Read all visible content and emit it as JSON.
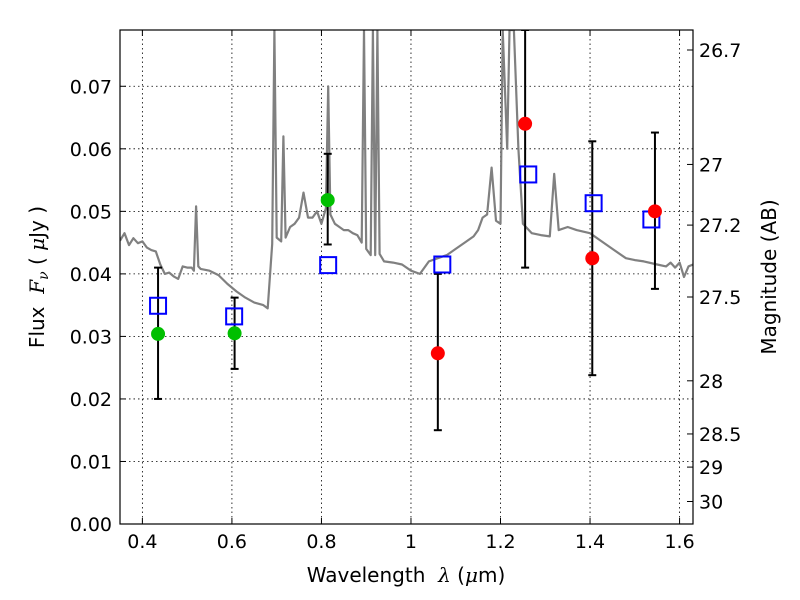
{
  "chart_data": {
    "type": "scatter",
    "title": "",
    "xlabel": {
      "prefix": "Wavelength",
      "symbol": "λ",
      "unit_open": " (",
      "unit_mu": "μ",
      "unit_rest": "m)"
    },
    "ylabel": {
      "prefix": "Flux",
      "symbol": "F",
      "subscript": "ν",
      "unit_open": " ( ",
      "unit_mu": "μ",
      "unit_rest": "Jy )"
    },
    "y2label": "Magnitude (AB)",
    "xlim": [
      0.35,
      1.63
    ],
    "ylim": [
      0.0,
      0.079
    ],
    "grid": true,
    "x_ticks": [
      {
        "v": 0.4,
        "label": "0.4"
      },
      {
        "v": 0.6,
        "label": "0.6"
      },
      {
        "v": 0.8,
        "label": "0.8"
      },
      {
        "v": 1.0,
        "label": "1"
      },
      {
        "v": 1.2,
        "label": "1.2"
      },
      {
        "v": 1.4,
        "label": "1.4"
      },
      {
        "v": 1.6,
        "label": "1.6"
      }
    ],
    "y_ticks": [
      {
        "v": 0.0,
        "label": "0.00"
      },
      {
        "v": 0.01,
        "label": "0.01"
      },
      {
        "v": 0.02,
        "label": "0.02"
      },
      {
        "v": 0.03,
        "label": "0.03"
      },
      {
        "v": 0.04,
        "label": "0.04"
      },
      {
        "v": 0.05,
        "label": "0.05"
      },
      {
        "v": 0.06,
        "label": "0.06"
      },
      {
        "v": 0.07,
        "label": "0.07"
      }
    ],
    "mag_ticks": [
      {
        "flux": 0.0758,
        "label": "26.7"
      },
      {
        "flux": 0.0575,
        "label": "27"
      },
      {
        "flux": 0.0478,
        "label": "27.2"
      },
      {
        "flux": 0.0363,
        "label": "27.5"
      },
      {
        "flux": 0.0229,
        "label": "28"
      },
      {
        "flux": 0.0144,
        "label": "28.5"
      },
      {
        "flux": 0.0091,
        "label": "29"
      },
      {
        "flux": 0.0036,
        "label": "30"
      }
    ],
    "colors": {
      "green": "#00bf00",
      "red": "#ff0000",
      "model": "#808080",
      "model_box": "#0000ff",
      "errorbar": "#000000",
      "grid": "#b0b0b0"
    },
    "observed_points": [
      {
        "x": 0.435,
        "flux": 0.0304,
        "err_low": 0.02,
        "err_high": 0.041,
        "color": "green"
      },
      {
        "x": 0.606,
        "flux": 0.0305,
        "err_low": 0.0248,
        "err_high": 0.0362,
        "color": "green"
      },
      {
        "x": 0.814,
        "flux": 0.0518,
        "err_low": 0.0447,
        "err_high": 0.0592,
        "color": "green"
      },
      {
        "x": 1.06,
        "flux": 0.0273,
        "err_low": 0.015,
        "err_high": 0.04,
        "color": "red"
      },
      {
        "x": 1.255,
        "flux": 0.064,
        "err_low": 0.041,
        "err_high": 0.079,
        "color": "red"
      },
      {
        "x": 1.405,
        "flux": 0.0425,
        "err_low": 0.0238,
        "err_high": 0.0612,
        "color": "red"
      },
      {
        "x": 1.545,
        "flux": 0.05,
        "err_low": 0.0376,
        "err_high": 0.0626,
        "color": "red"
      }
    ],
    "model_photometry": [
      {
        "x": 0.435,
        "flux": 0.0349
      },
      {
        "x": 0.605,
        "flux": 0.0332
      },
      {
        "x": 0.815,
        "flux": 0.0414
      },
      {
        "x": 1.07,
        "flux": 0.0415
      },
      {
        "x": 1.262,
        "flux": 0.0559
      },
      {
        "x": 1.408,
        "flux": 0.0513
      },
      {
        "x": 1.537,
        "flux": 0.0487
      }
    ],
    "model_spectrum": [
      [
        0.35,
        0.0453
      ],
      [
        0.36,
        0.0465
      ],
      [
        0.37,
        0.0446
      ],
      [
        0.38,
        0.0457
      ],
      [
        0.39,
        0.0449
      ],
      [
        0.4,
        0.0452
      ],
      [
        0.41,
        0.0442
      ],
      [
        0.42,
        0.0438
      ],
      [
        0.43,
        0.0436
      ],
      [
        0.44,
        0.0415
      ],
      [
        0.45,
        0.04
      ],
      [
        0.46,
        0.0402
      ],
      [
        0.47,
        0.0396
      ],
      [
        0.48,
        0.0392
      ],
      [
        0.49,
        0.0412
      ],
      [
        0.5,
        0.041
      ],
      [
        0.51,
        0.041
      ],
      [
        0.515,
        0.0405
      ],
      [
        0.52,
        0.0508
      ],
      [
        0.525,
        0.0412
      ],
      [
        0.53,
        0.0408
      ],
      [
        0.55,
        0.0405
      ],
      [
        0.57,
        0.0398
      ],
      [
        0.59,
        0.0384
      ],
      [
        0.61,
        0.0372
      ],
      [
        0.63,
        0.0362
      ],
      [
        0.65,
        0.0354
      ],
      [
        0.67,
        0.035
      ],
      [
        0.68,
        0.0345
      ],
      [
        0.69,
        0.0448
      ],
      [
        0.695,
        0.079
      ],
      [
        0.7,
        0.0458
      ],
      [
        0.71,
        0.0452
      ],
      [
        0.715,
        0.062
      ],
      [
        0.72,
        0.0458
      ],
      [
        0.73,
        0.0475
      ],
      [
        0.74,
        0.048
      ],
      [
        0.75,
        0.049
      ],
      [
        0.76,
        0.053
      ],
      [
        0.77,
        0.049
      ],
      [
        0.78,
        0.049
      ],
      [
        0.79,
        0.05
      ],
      [
        0.8,
        0.048
      ],
      [
        0.81,
        0.0505
      ],
      [
        0.815,
        0.07
      ],
      [
        0.82,
        0.0495
      ],
      [
        0.83,
        0.048
      ],
      [
        0.84,
        0.0475
      ],
      [
        0.85,
        0.047
      ],
      [
        0.86,
        0.047
      ],
      [
        0.87,
        0.0465
      ],
      [
        0.88,
        0.0462
      ],
      [
        0.89,
        0.045
      ],
      [
        0.895,
        0.079
      ],
      [
        0.9,
        0.044
      ],
      [
        0.91,
        0.043
      ],
      [
        0.915,
        0.079
      ],
      [
        0.92,
        0.043
      ],
      [
        0.925,
        0.079
      ],
      [
        0.93,
        0.0432
      ],
      [
        0.94,
        0.042
      ],
      [
        0.96,
        0.0418
      ],
      [
        0.98,
        0.0415
      ],
      [
        1.0,
        0.0405
      ],
      [
        1.02,
        0.04
      ],
      [
        1.04,
        0.042
      ],
      [
        1.06,
        0.0425
      ],
      [
        1.08,
        0.043
      ],
      [
        1.1,
        0.044
      ],
      [
        1.12,
        0.045
      ],
      [
        1.14,
        0.046
      ],
      [
        1.15,
        0.047
      ],
      [
        1.16,
        0.049
      ],
      [
        1.17,
        0.0495
      ],
      [
        1.18,
        0.057
      ],
      [
        1.19,
        0.0485
      ],
      [
        1.2,
        0.048
      ],
      [
        1.205,
        0.079
      ],
      [
        1.215,
        0.06
      ],
      [
        1.22,
        0.079
      ],
      [
        1.23,
        0.079
      ],
      [
        1.24,
        0.06
      ],
      [
        1.25,
        0.048
      ],
      [
        1.27,
        0.0465
      ],
      [
        1.29,
        0.0462
      ],
      [
        1.31,
        0.046
      ],
      [
        1.32,
        0.056
      ],
      [
        1.33,
        0.047
      ],
      [
        1.35,
        0.0475
      ],
      [
        1.37,
        0.047
      ],
      [
        1.4,
        0.0465
      ],
      [
        1.42,
        0.0455
      ],
      [
        1.45,
        0.044
      ],
      [
        1.48,
        0.0425
      ],
      [
        1.5,
        0.0422
      ],
      [
        1.52,
        0.042
      ],
      [
        1.55,
        0.0415
      ],
      [
        1.57,
        0.0412
      ],
      [
        1.58,
        0.0418
      ],
      [
        1.59,
        0.041
      ],
      [
        1.6,
        0.0418
      ],
      [
        1.61,
        0.0395
      ],
      [
        1.62,
        0.0412
      ],
      [
        1.63,
        0.0415
      ]
    ]
  }
}
